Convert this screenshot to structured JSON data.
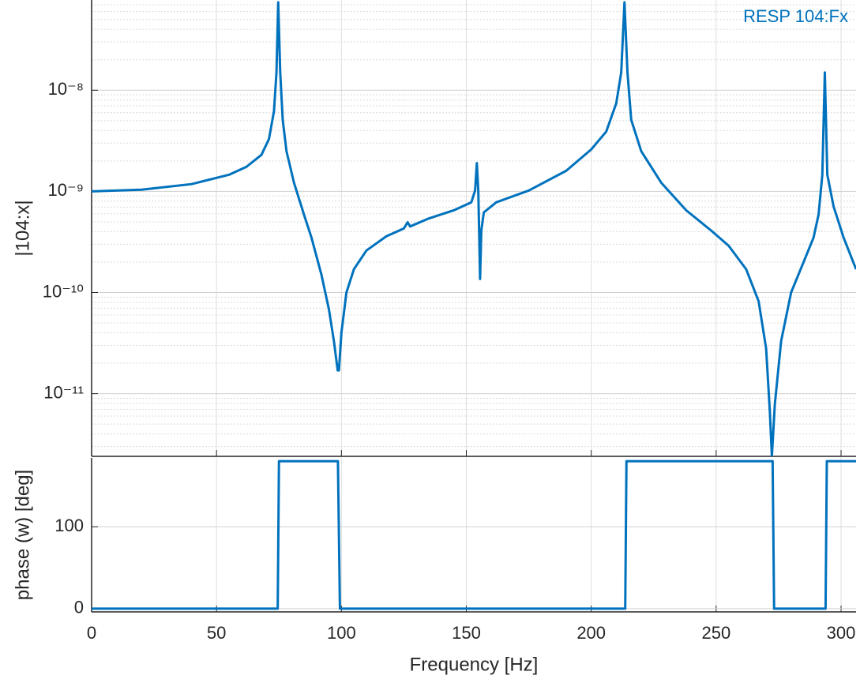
{
  "chart_data": [
    {
      "type": "line",
      "ylabel": "|104:x|",
      "log_y": true,
      "grid": true,
      "minor_grid": true,
      "legend": "top-right",
      "xlim": [
        0,
        306
      ],
      "xticks": [
        0,
        50,
        100,
        150,
        200,
        250,
        300
      ],
      "ylim": [
        2.4e-12,
        7.8e-08
      ],
      "yticks": [
        {
          "value": 1e-11,
          "label": "10⁻¹¹"
        },
        {
          "value": 1e-10,
          "label": "10⁻¹⁰"
        },
        {
          "value": 1e-09,
          "label": "10⁻⁹"
        },
        {
          "value": 1e-08,
          "label": "10⁻⁸"
        }
      ],
      "x": [
        0,
        20,
        40,
        55,
        62,
        68,
        71,
        73,
        74,
        74.7,
        75.5,
        76.5,
        78,
        81,
        85,
        88,
        92,
        95,
        97,
        98.5,
        99,
        100,
        102,
        105,
        110,
        118,
        125,
        126.5,
        127.5,
        135,
        145,
        152,
        153.5,
        154.2,
        154.8,
        155.5,
        156,
        157,
        162,
        175,
        190,
        200,
        206,
        210,
        212,
        213.3,
        214.5,
        216,
        220,
        228,
        238,
        248,
        255,
        262,
        267,
        270,
        271.5,
        272.3,
        273.5,
        276,
        280,
        285,
        289,
        291,
        292.5,
        293.5,
        294.5,
        297,
        301,
        306
      ],
      "series": [
        {
          "name": "RESP  104:Fx",
          "color": "#0072bd",
          "values": [
            1e-09,
            1.04e-09,
            1.18e-09,
            1.46e-09,
            1.75e-09,
            2.3e-09,
            3.3e-09,
            6.2e-09,
            1.5e-08,
            7.4e-08,
            1.5e-08,
            5.1e-09,
            2.5e-09,
            1.22e-09,
            5.9e-10,
            3.5e-10,
            1.5e-10,
            6.8e-11,
            3.3e-11,
            1.7e-11,
            1.7e-11,
            4e-11,
            1e-10,
            1.7e-10,
            2.6e-10,
            3.6e-10,
            4.3e-10,
            4.95e-10,
            4.5e-10,
            5.4e-10,
            6.5e-10,
            7.8e-10,
            1.02e-09,
            1.9e-09,
            1e-09,
            1.36e-10,
            4.1e-10,
            6.2e-10,
            7.8e-10,
            1.02e-09,
            1.6e-09,
            2.6e-09,
            3.9e-09,
            7.4e-09,
            1.5e-08,
            7.4e-08,
            1.5e-08,
            5.1e-09,
            2.5e-09,
            1.22e-09,
            6.5e-10,
            4.1e-10,
            2.9e-10,
            1.7e-10,
            8.2e-11,
            2.8e-11,
            6.6e-12,
            2.4e-12,
            7.9e-12,
            3.3e-11,
            1e-10,
            2e-10,
            3.5e-10,
            5.9e-10,
            1.46e-09,
            1.5e-08,
            1.46e-09,
            7.1e-10,
            3.5e-10,
            1.7e-10
          ]
        }
      ]
    },
    {
      "type": "line",
      "xlabel": "Frequency [Hz]",
      "ylabel": "phase (w) [deg]",
      "grid": true,
      "xlim": [
        0,
        306
      ],
      "xticks": [
        0,
        50,
        100,
        150,
        200,
        250,
        300
      ],
      "ylim": [
        -4,
        184
      ],
      "yticks": [
        0,
        100
      ],
      "x": [
        0,
        74.5,
        75,
        98.6,
        99.4,
        213.6,
        214.1,
        272.6,
        273.2,
        293.8,
        294.3,
        306
      ],
      "series": [
        {
          "color": "#0072bd",
          "values": [
            0,
            0,
            180,
            180,
            0,
            0,
            180,
            180,
            0,
            0,
            180,
            180
          ]
        }
      ]
    }
  ]
}
